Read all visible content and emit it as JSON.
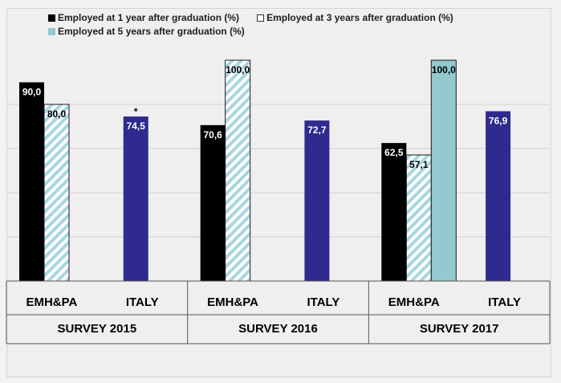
{
  "chart_data": {
    "type": "bar",
    "groups": [
      {
        "survey": "SURVEY 2015",
        "categories": [
          "EMH&PA",
          "ITALY"
        ]
      },
      {
        "survey": "SURVEY 2016",
        "categories": [
          "EMH&PA",
          "ITALY"
        ]
      },
      {
        "survey": "SURVEY 2017",
        "categories": [
          "EMH&PA",
          "ITALY"
        ]
      }
    ],
    "series": [
      {
        "name": "Employed at 1 year after graduation (%)",
        "style": "solid",
        "color": "#000000",
        "values": {
          "SURVEY 2015|EMH&PA": 90.0,
          "SURVEY 2016|EMH&PA": 70.6,
          "SURVEY 2017|EMH&PA": 62.5
        },
        "labels": {
          "SURVEY 2015|EMH&PA": "90,0",
          "SURVEY 2016|EMH&PA": "70,6",
          "SURVEY 2017|EMH&PA": "62,5"
        }
      },
      {
        "name": "Employed at 3 years after graduation (%)",
        "style": "hatched",
        "color": "#9fd0dc",
        "values": {
          "SURVEY 2015|EMH&PA": 80.0,
          "SURVEY 2016|EMH&PA": 100.0,
          "SURVEY 2017|EMH&PA": 57.1
        },
        "labels": {
          "SURVEY 2015|EMH&PA": "80,0",
          "SURVEY 2016|EMH&PA": "100,0",
          "SURVEY 2017|EMH&PA": "57,1"
        }
      },
      {
        "name": "Employed at 5 years after graduation (%)",
        "style": "solid",
        "color": "#93c9cf",
        "values": {
          "SURVEY 2017|EMH&PA": 100.0
        },
        "labels": {
          "SURVEY 2017|EMH&PA": "100,0"
        }
      },
      {
        "name": "",
        "style": "solid",
        "color": "#2e2a8e",
        "values": {
          "SURVEY 2015|ITALY": 74.5,
          "SURVEY 2016|ITALY": 72.7,
          "SURVEY 2017|ITALY": 76.9
        },
        "labels": {
          "SURVEY 2015|ITALY": "74,5",
          "SURVEY 2016|ITALY": "72,7",
          "SURVEY 2017|ITALY": "76,9"
        }
      }
    ],
    "annotations": [
      {
        "text": "*",
        "target": "SURVEY 2015|ITALY"
      }
    ],
    "ylim": [
      0,
      100
    ],
    "grid": true,
    "legend": "top"
  }
}
